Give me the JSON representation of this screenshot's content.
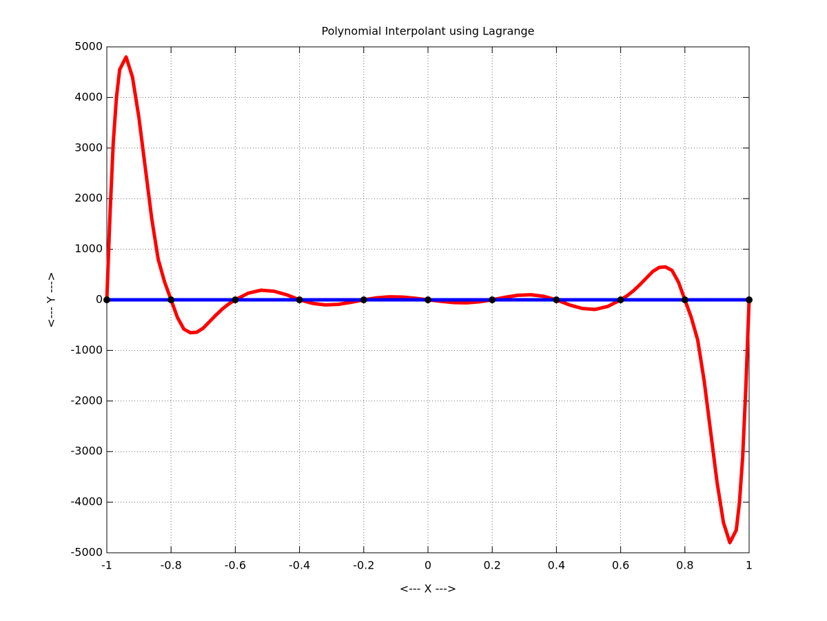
{
  "chart_data": {
    "type": "line",
    "title": "Polynomial Interpolant using Lagrange",
    "x_label": "<--- X --->",
    "y_label": "<--- Y --->",
    "xlim": [
      -1,
      1
    ],
    "ylim": [
      -5000,
      5000
    ],
    "xticks": [
      -1,
      -0.8,
      -0.6,
      -0.4,
      -0.2,
      0,
      0.2,
      0.4,
      0.6,
      0.8,
      1
    ],
    "yticks": [
      -5000,
      -4000,
      -3000,
      -2000,
      -1000,
      0,
      1000,
      2000,
      3000,
      4000,
      5000
    ],
    "grid": true,
    "series": [
      {
        "color": "#ff0000",
        "style": "line",
        "x": [
          -1,
          -0.99,
          -0.98,
          -0.97,
          -0.96,
          -0.94,
          -0.92,
          -0.9,
          -0.88,
          -0.86,
          -0.84,
          -0.82,
          -0.8,
          -0.78,
          -0.76,
          -0.74,
          -0.72,
          -0.7,
          -0.68,
          -0.66,
          -0.64,
          -0.62,
          -0.6,
          -0.56,
          -0.52,
          -0.48,
          -0.44,
          -0.4,
          -0.36,
          -0.32,
          -0.28,
          -0.24,
          -0.2,
          -0.16,
          -0.12,
          -0.08,
          -0.04,
          0,
          0.04,
          0.08,
          0.12,
          0.16,
          0.2,
          0.24,
          0.28,
          0.32,
          0.36,
          0.4,
          0.44,
          0.48,
          0.52,
          0.56,
          0.6,
          0.62,
          0.64,
          0.66,
          0.68,
          0.7,
          0.72,
          0.74,
          0.76,
          0.78,
          0.8,
          0.82,
          0.84,
          0.86,
          0.88,
          0.9,
          0.92,
          0.94,
          0.96,
          0.97,
          0.98,
          0.99,
          1
        ],
        "values": [
          0,
          1700,
          3100,
          4000,
          4550,
          4800,
          4400,
          3600,
          2600,
          1600,
          800,
          350,
          0,
          -350,
          -580,
          -650,
          -640,
          -560,
          -430,
          -300,
          -180,
          -80,
          0,
          130,
          190,
          170,
          100,
          0,
          -70,
          -100,
          -90,
          -50,
          0,
          40,
          60,
          55,
          30,
          0,
          -30,
          -55,
          -60,
          -40,
          0,
          50,
          90,
          100,
          70,
          0,
          -100,
          -170,
          -190,
          -130,
          0,
          80,
          180,
          300,
          430,
          560,
          640,
          650,
          580,
          350,
          0,
          -350,
          -800,
          -1600,
          -2600,
          -3600,
          -4400,
          -4800,
          -4550,
          -4000,
          -3100,
          -1700,
          0
        ]
      },
      {
        "color": "#0000ff",
        "style": "line",
        "x": [
          -1,
          1
        ],
        "values": [
          0,
          0
        ]
      },
      {
        "color": "#000000",
        "style": "markers",
        "x": [
          -1,
          -0.8,
          -0.6,
          -0.4,
          -0.2,
          0,
          0.2,
          0.4,
          0.6,
          0.8,
          1
        ],
        "values": [
          0,
          0,
          0,
          0,
          0,
          0,
          0,
          0,
          0,
          0,
          0
        ]
      }
    ]
  }
}
